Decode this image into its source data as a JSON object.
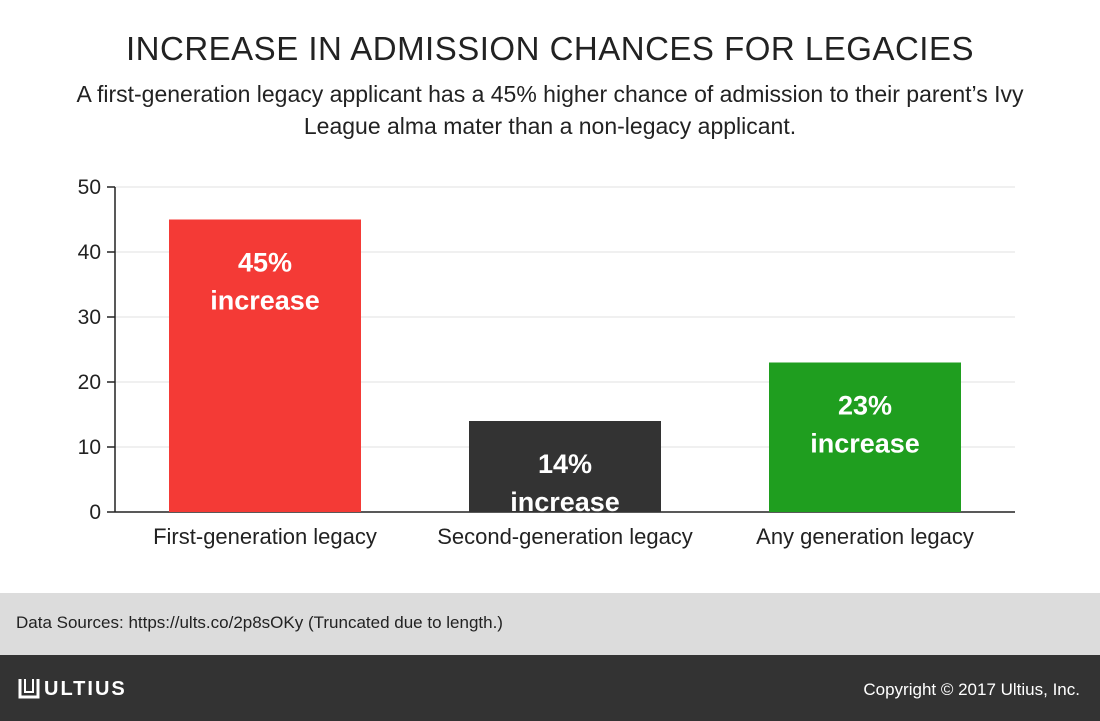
{
  "chart_data": {
    "type": "bar",
    "title": "INCREASE IN ADMISSION CHANCES FOR LEGACIES",
    "subtitle": "A first-generation legacy applicant has a 45% higher chance of admission to their parent’s Ivy League alma mater than a non-legacy applicant.",
    "categories": [
      "First-generation legacy",
      "Second-generation legacy",
      "Any generation legacy"
    ],
    "values": [
      45,
      14,
      23
    ],
    "bar_labels": [
      [
        "45%",
        "increase"
      ],
      [
        "14%",
        "increase"
      ],
      [
        "23%",
        "increase"
      ]
    ],
    "bar_colors": [
      "#f43a36",
      "#333333",
      "#1f9e1f"
    ],
    "yticks": [
      0,
      10,
      20,
      30,
      40,
      50
    ],
    "ylim": [
      0,
      50
    ],
    "xlabel": "",
    "ylabel": "",
    "grid": true
  },
  "source": {
    "text": "Data Sources: https://ults.co/2p8sOKy (Truncated due to length.)"
  },
  "footer": {
    "brand": "ULTIUS",
    "brand_icon": "ultius-logo-icon",
    "copyright": "Copyright © 2017 Ultius, Inc."
  }
}
